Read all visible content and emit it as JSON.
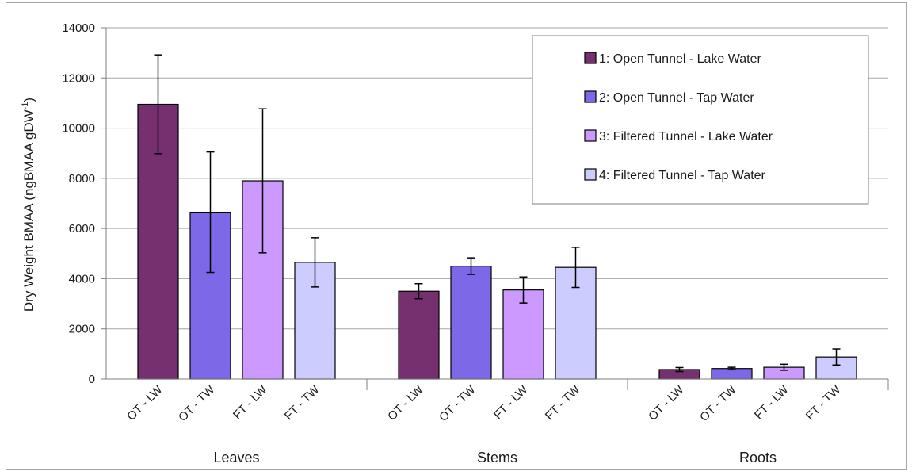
{
  "chart_data": {
    "type": "bar",
    "ylabel_main": "Dry Weight BMAA (ngBMAA gDW",
    "ylabel_sup": "-1",
    "ylabel_close": ")",
    "ylim": [
      0,
      14000
    ],
    "yticks": [
      "0",
      "2000",
      "4000",
      "6000",
      "8000",
      "10000",
      "12000",
      "14000"
    ],
    "grid": true,
    "legend_position": "top-right",
    "groups": [
      "Leaves",
      "Stems",
      "Roots"
    ],
    "bar_labels": [
      "OT - LW",
      "OT - TW",
      "FT - LW",
      "FT - TW"
    ],
    "series": [
      {
        "name": "1: Open Tunnel - Lake Water",
        "color": "#76306f",
        "values": [
          10950,
          3500,
          380
        ],
        "errors": [
          1970,
          300,
          80
        ]
      },
      {
        "name": "2: Open Tunnel - Tap Water",
        "color": "#7d69e8",
        "values": [
          6650,
          4500,
          420
        ],
        "errors": [
          2400,
          330,
          50
        ]
      },
      {
        "name": "3: Filtered Tunnel - Lake Water",
        "color": "#cc99ff",
        "values": [
          7900,
          3550,
          470
        ],
        "errors": [
          2870,
          520,
          120
        ]
      },
      {
        "name": "4: Filtered Tunnel - Tap Water",
        "color": "#ccccff",
        "values": [
          4650,
          4450,
          880
        ],
        "errors": [
          980,
          800,
          320
        ]
      }
    ]
  }
}
